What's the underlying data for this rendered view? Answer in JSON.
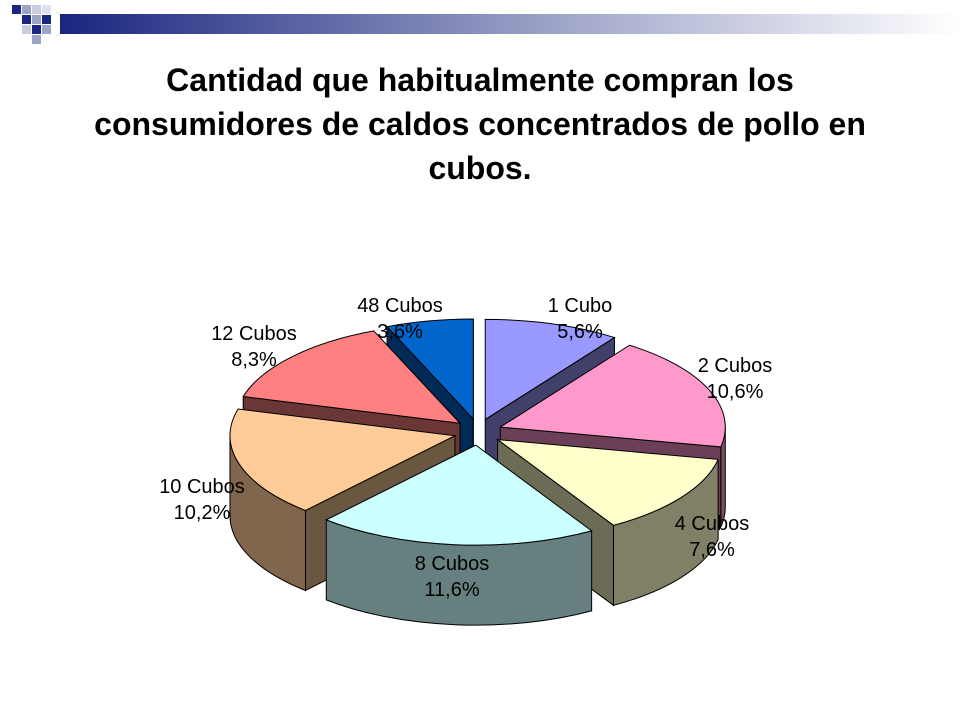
{
  "slide": {
    "title": "Cantidad que habitualmente compran los consumidores de caldos concentrados de pollo en cubos."
  },
  "chart_data": {
    "type": "pie",
    "title": "Cantidad que habitualmente compran los consumidores de caldos concentrados de pollo en cubos.",
    "three_d": true,
    "exploded": true,
    "slices": [
      {
        "label": "1 Cubo",
        "value": 5.6,
        "value_label": "5,6%",
        "color": "#9999ff"
      },
      {
        "label": "2 Cubos",
        "value": 10.6,
        "value_label": "10,6%",
        "color": "#ff99cc"
      },
      {
        "label": "4 Cubos",
        "value": 7.6,
        "value_label": "7,6%",
        "color": "#ffffcc"
      },
      {
        "label": "8 Cubos",
        "value": 11.6,
        "value_label": "11,6%",
        "color": "#ccffff"
      },
      {
        "label": "10 Cubos",
        "value": 10.2,
        "value_label": "10,2%",
        "color": "#ffcc99"
      },
      {
        "label": "12 Cubos",
        "value": 8.3,
        "value_label": "8,3%",
        "color": "#ff8080"
      },
      {
        "label": "48 Cubos",
        "value": 3.6,
        "value_label": "3,6%",
        "color": "#0066cc"
      }
    ]
  }
}
